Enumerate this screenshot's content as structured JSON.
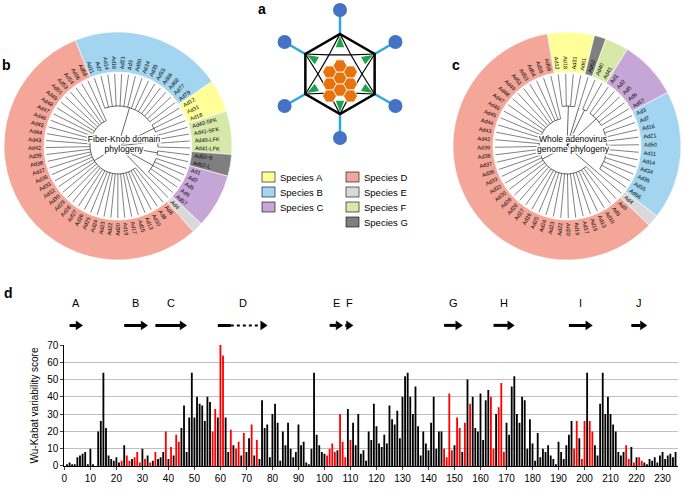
{
  "panels": {
    "a": {
      "label": "a"
    },
    "b": {
      "label": "b",
      "title_lines": [
        "Fiber-Knob domain",
        "phylogeny"
      ],
      "groups": [
        {
          "species": "B",
          "leaves": [
            "Ad11",
            "Ad7",
            "Ad14",
            "Ad16",
            "Ad21",
            "Ad3",
            "Ad50",
            "Ad34",
            "Ad35",
            "Ad55",
            "Ad66",
            "Ad68",
            "Ad77",
            "Ad79"
          ]
        },
        {
          "species": "A",
          "leaves": [
            "Ad12",
            "Ad31",
            "Ad18"
          ]
        },
        {
          "species": "F",
          "leaves": [
            "Ad40-SFK",
            "Ad41-SFK",
            "Ad40-LFK",
            "Ad41-LFK"
          ]
        },
        {
          "species": "G",
          "leaves": [
            "Ad52-S",
            "Ad52-L"
          ]
        },
        {
          "species": "C",
          "leaves": [
            "Ad1",
            "Ad2",
            "Ad5",
            "Ad6",
            "Ad57"
          ]
        },
        {
          "species": "E",
          "leaves": [
            "Ad4"
          ]
        },
        {
          "species": "D",
          "leaves": [
            "Ad8",
            "Ad9",
            "Ad10",
            "Ad13",
            "Ad15",
            "Ad17",
            "Ad19",
            "Ad20",
            "Ad22",
            "Ad23",
            "Ad24",
            "Ad25",
            "Ad26",
            "Ad27",
            "Ad28",
            "Ad29",
            "Ad30",
            "Ad32",
            "Ad33",
            "Ad36",
            "Ad37",
            "Ad38",
            "Ad39",
            "Ad42",
            "Ad43",
            "Ad44",
            "Ad45",
            "Ad46",
            "Ad47",
            "Ad48",
            "Ad49",
            "Ad51",
            "Ad53",
            "Ad54",
            "Ad56",
            "Ad58"
          ]
        }
      ]
    },
    "c": {
      "label": "c",
      "title_lines": [
        "Whole adenovirus",
        "genome phylogeny"
      ],
      "groups": [
        {
          "species": "A",
          "leaves": [
            "Ad12",
            "Ad18",
            "Ad31",
            "Ad61"
          ]
        },
        {
          "species": "G",
          "leaves": [
            "Ad52"
          ]
        },
        {
          "species": "F",
          "leaves": [
            "Ad40",
            "Ad41"
          ]
        },
        {
          "species": "C",
          "leaves": [
            "Ad1",
            "Ad2",
            "Ad5",
            "Ad6",
            "Ad57"
          ]
        },
        {
          "species": "B",
          "leaves": [
            "Ad3",
            "Ad7",
            "Ad16",
            "Ad21",
            "Ad50",
            "Ad11",
            "Ad14",
            "Ad34",
            "Ad35",
            "Ad55",
            "Ad66"
          ]
        },
        {
          "species": "E",
          "leaves": [
            "Ad4"
          ]
        },
        {
          "species": "D",
          "leaves": [
            "Ad8",
            "Ad9",
            "Ad10",
            "Ad13",
            "Ad15",
            "Ad17",
            "Ad19",
            "Ad20",
            "Ad22",
            "Ad23",
            "Ad24",
            "Ad25",
            "Ad26",
            "Ad27",
            "Ad28",
            "Ad29",
            "Ad30",
            "Ad32",
            "Ad33",
            "Ad36",
            "Ad37",
            "Ad38",
            "Ad39",
            "Ad42",
            "Ad43",
            "Ad44",
            "Ad45",
            "Ad46",
            "Ad47",
            "Ad48",
            "Ad49",
            "Ad51",
            "Ad53",
            "Ad54",
            "Ad56",
            "Ad58"
          ]
        }
      ]
    }
  },
  "legend": [
    {
      "species": "A",
      "label": "Species A",
      "color": "#ffff99"
    },
    {
      "species": "B",
      "label": "Species B",
      "color": "#a3d5f0"
    },
    {
      "species": "C",
      "label": "Species C",
      "color": "#c6a6d6"
    },
    {
      "species": "D",
      "label": "Species D",
      "color": "#f4a799"
    },
    {
      "species": "E",
      "label": "Species E",
      "color": "#d9d9d9"
    },
    {
      "species": "F",
      "label": "Species F",
      "color": "#d6e9a8"
    },
    {
      "species": "G",
      "label": "Species G",
      "color": "#7f7f7f"
    }
  ],
  "chart_data": {
    "type": "bar",
    "label": "d",
    "ylabel": "Wu-Kabat variability score",
    "x": [
      1,
      2,
      3,
      4,
      5,
      6,
      7,
      8,
      9,
      10,
      11,
      12,
      13,
      14,
      15,
      16,
      17,
      18,
      19,
      20,
      21,
      22,
      23,
      24,
      25,
      26,
      27,
      28,
      29,
      30,
      31,
      32,
      33,
      34,
      35,
      36,
      37,
      38,
      39,
      40,
      41,
      42,
      43,
      44,
      45,
      46,
      47,
      48,
      49,
      50,
      51,
      52,
      53,
      54,
      55,
      56,
      57,
      58,
      59,
      60,
      61,
      62,
      63,
      64,
      65,
      66,
      67,
      68,
      69,
      70,
      71,
      72,
      73,
      74,
      75,
      76,
      77,
      78,
      79,
      80,
      81,
      82,
      83,
      84,
      85,
      86,
      87,
      88,
      89,
      90,
      91,
      92,
      93,
      94,
      95,
      96,
      97,
      98,
      99,
      100,
      101,
      102,
      103,
      104,
      105,
      106,
      107,
      108,
      109,
      110,
      111,
      112,
      113,
      114,
      115,
      116,
      117,
      118,
      119,
      120,
      121,
      122,
      123,
      124,
      125,
      126,
      127,
      128,
      129,
      130,
      131,
      132,
      133,
      134,
      135,
      136,
      137,
      138,
      139,
      140,
      141,
      142,
      143,
      144,
      145,
      146,
      147,
      148,
      149,
      150,
      151,
      152,
      153,
      154,
      155,
      156,
      157,
      158,
      159,
      160,
      161,
      162,
      163,
      164,
      165,
      166,
      167,
      168,
      169,
      170,
      171,
      172,
      173,
      174,
      175,
      176,
      177,
      178,
      179,
      180,
      181,
      182,
      183,
      184,
      185,
      186,
      187,
      188,
      189,
      190,
      191,
      192,
      193,
      194,
      195,
      196,
      197,
      198,
      199,
      200,
      201,
      202,
      203,
      204,
      205,
      206,
      207,
      208,
      209,
      210,
      211,
      212,
      213,
      214,
      215,
      216,
      217,
      218,
      219,
      220,
      221,
      222,
      223,
      224,
      225,
      226,
      227,
      228,
      229,
      230,
      231,
      232,
      233,
      234,
      235
    ],
    "values": [
      1,
      2,
      1,
      1,
      5,
      6,
      7,
      8,
      1,
      10,
      1,
      0,
      20,
      26,
      54,
      22,
      6,
      4,
      3,
      5,
      2,
      3,
      12,
      6,
      3,
      4,
      5,
      8,
      2,
      10,
      4,
      6,
      2,
      3,
      8,
      4,
      5,
      8,
      20,
      4,
      11,
      6,
      18,
      14,
      22,
      35,
      8,
      28,
      54,
      28,
      40,
      36,
      35,
      26,
      40,
      37,
      20,
      33,
      28,
      70,
      64,
      28,
      8,
      21,
      12,
      10,
      14,
      6,
      19,
      8,
      16,
      24,
      6,
      15,
      4,
      38,
      22,
      24,
      5,
      30,
      36,
      25,
      3,
      20,
      12,
      25,
      10,
      5,
      8,
      24,
      12,
      14,
      2,
      1,
      10,
      54,
      18,
      12,
      8,
      7,
      6,
      10,
      13,
      8,
      9,
      30,
      14,
      5,
      33,
      15,
      25,
      12,
      30,
      7,
      9,
      3,
      20,
      15,
      36,
      23,
      13,
      11,
      18,
      13,
      35,
      27,
      24,
      32,
      16,
      40,
      52,
      54,
      40,
      30,
      46,
      23,
      6,
      20,
      13,
      9,
      25,
      40,
      10,
      20,
      20,
      10,
      5,
      42,
      9,
      12,
      28,
      22,
      8,
      25,
      50,
      36,
      40,
      22,
      20,
      42,
      15,
      38,
      44,
      40,
      10,
      30,
      34,
      48,
      8,
      25,
      18,
      46,
      52,
      30,
      25,
      40,
      38,
      10,
      27,
      13,
      3,
      19,
      5,
      10,
      8,
      12,
      6,
      4,
      1,
      14,
      8,
      4,
      12,
      18,
      26,
      10,
      26,
      16,
      4,
      26,
      54,
      26,
      20,
      12,
      6,
      36,
      54,
      30,
      40,
      30,
      24,
      20,
      8,
      6,
      8,
      12,
      4,
      11,
      2,
      5,
      5,
      3,
      2,
      1,
      4,
      3,
      5,
      2,
      6,
      8,
      4,
      6,
      7,
      5,
      8
    ],
    "colors": [
      "black",
      "black",
      "black",
      "black",
      "black",
      "black",
      "black",
      "black",
      "black",
      "black",
      "black",
      "black",
      "black",
      "black",
      "black",
      "black",
      "black",
      "black",
      "black",
      "black",
      "black",
      "red",
      "black",
      "red",
      "red",
      "black",
      "red",
      "red",
      "red",
      "black",
      "red",
      "black",
      "red",
      "black",
      "red",
      "black",
      "black",
      "black",
      "red",
      "black",
      "red",
      "black",
      "red",
      "red",
      "black",
      "black",
      "black",
      "black",
      "black",
      "black",
      "black",
      "black",
      "black",
      "black",
      "black",
      "black",
      "red",
      "red",
      "black",
      "red",
      "red",
      "black",
      "black",
      "red",
      "black",
      "red",
      "red",
      "black",
      "red",
      "black",
      "black",
      "red",
      "black",
      "red",
      "black",
      "black",
      "black",
      "black",
      "black",
      "black",
      "black",
      "black",
      "black",
      "black",
      "black",
      "black",
      "black",
      "black",
      "black",
      "black",
      "black",
      "black",
      "black",
      "black",
      "black",
      "black",
      "black",
      "black",
      "black",
      "black",
      "red",
      "red",
      "red",
      "red",
      "black",
      "red",
      "red",
      "red",
      "black",
      "red",
      "black",
      "black",
      "black",
      "black",
      "black",
      "black",
      "black",
      "black",
      "black",
      "black",
      "black",
      "black",
      "black",
      "black",
      "black",
      "black",
      "black",
      "black",
      "black",
      "black",
      "black",
      "black",
      "black",
      "black",
      "black",
      "black",
      "black",
      "black",
      "black",
      "black",
      "black",
      "black",
      "black",
      "black",
      "black",
      "red",
      "red",
      "red",
      "red",
      "black",
      "red",
      "red",
      "black",
      "red",
      "black",
      "red",
      "black",
      "black",
      "black",
      "black",
      "black",
      "black",
      "black",
      "red",
      "red",
      "black",
      "red",
      "red",
      "red",
      "black",
      "black",
      "black",
      "black",
      "black",
      "black",
      "black",
      "black",
      "black",
      "black",
      "black",
      "black",
      "black",
      "black",
      "black",
      "black",
      "black",
      "black",
      "black",
      "black",
      "black",
      "black",
      "black",
      "black",
      "black",
      "black",
      "red",
      "red",
      "black",
      "red",
      "red",
      "black",
      "red",
      "red",
      "black",
      "black",
      "black",
      "black",
      "black",
      "black",
      "black",
      "black",
      "black",
      "black",
      "black",
      "black",
      "red",
      "red",
      "black",
      "red",
      "black",
      "red",
      "red",
      "black",
      "black",
      "black",
      "black",
      "black",
      "black",
      "black",
      "black",
      "black",
      "black",
      "black",
      "black",
      "black"
    ],
    "xlim": [
      0,
      236
    ],
    "xticks": [
      0,
      10,
      20,
      30,
      40,
      50,
      60,
      70,
      80,
      90,
      100,
      110,
      120,
      130,
      140,
      150,
      160,
      170,
      180,
      190,
      200,
      210,
      220,
      230
    ],
    "ylim": [
      0,
      70
    ],
    "yticks": [
      0,
      10,
      20,
      30,
      40,
      50,
      60,
      70
    ],
    "grid": true,
    "strands": [
      {
        "label": "A",
        "start": 2,
        "end": 7
      },
      {
        "label": "B",
        "start": 23,
        "end": 32
      },
      {
        "label": "C",
        "start": 35,
        "end": 47
      },
      {
        "label": "D",
        "start": 59,
        "solid_end": 64,
        "end": 78
      },
      {
        "label": "E",
        "start": 102,
        "end": 107
      },
      {
        "label": "F",
        "start": 108,
        "end": 111
      },
      {
        "label": "G",
        "start": 146,
        "end": 153
      },
      {
        "label": "H",
        "start": 165,
        "end": 173
      },
      {
        "label": "I",
        "start": 194,
        "end": 203
      },
      {
        "label": "J",
        "start": 218,
        "end": 224
      }
    ]
  }
}
